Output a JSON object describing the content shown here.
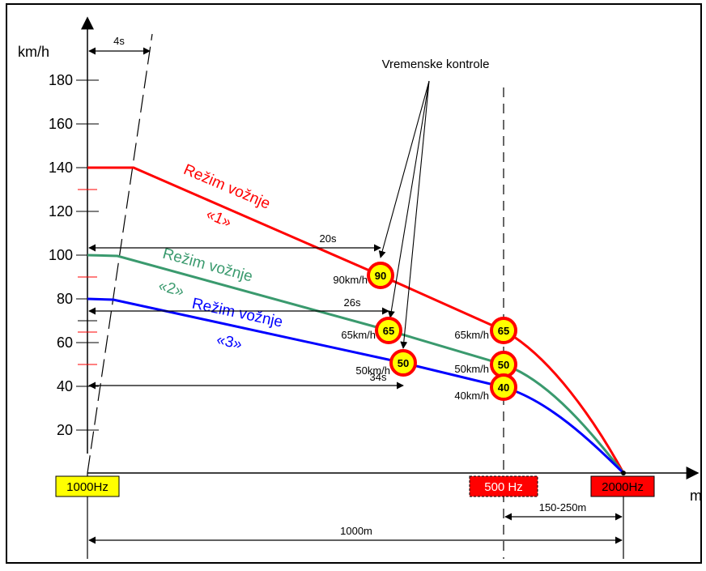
{
  "axes": {
    "y_unit": "km/h",
    "x_unit": "m",
    "y_ticks": [
      "180",
      "160",
      "140",
      "120",
      "100",
      "80",
      "60",
      "40",
      "20"
    ]
  },
  "time_marker": {
    "label": "4s"
  },
  "vremenske_kontrole": {
    "label": "Vremenske kontrole"
  },
  "modes": [
    {
      "line1": "Režim vožnje",
      "line2": "«1»",
      "color": "#ff0000"
    },
    {
      "line1": "Režim vožnje",
      "line2": "«2»",
      "color": "#3a9a6e"
    },
    {
      "line1": "Režim vožnje",
      "line2": "«3»",
      "color": "#0000ff"
    }
  ],
  "durations": [
    "20s",
    "26s",
    "34s"
  ],
  "mid_signs": [
    {
      "value": "90",
      "label": "90km/h"
    },
    {
      "value": "65",
      "label": "65km/h"
    },
    {
      "value": "50",
      "label": "50km/h"
    }
  ],
  "end_signs": [
    {
      "value": "65",
      "label": "65km/h"
    },
    {
      "value": "50",
      "label": "50km/h"
    },
    {
      "value": "40",
      "label": "40km/h"
    }
  ],
  "balises": [
    {
      "label": "1000Hz",
      "fill": "#ffff00"
    },
    {
      "label": "500 Hz",
      "fill": "#ff0000"
    },
    {
      "label": "2000Hz",
      "fill": "#ff0000"
    }
  ],
  "distances": {
    "braking": "150-250m",
    "total": "1000m"
  },
  "colors": {
    "sign_fill": "#ffff00",
    "sign_ring": "#ff0000",
    "axis": "#000000"
  }
}
